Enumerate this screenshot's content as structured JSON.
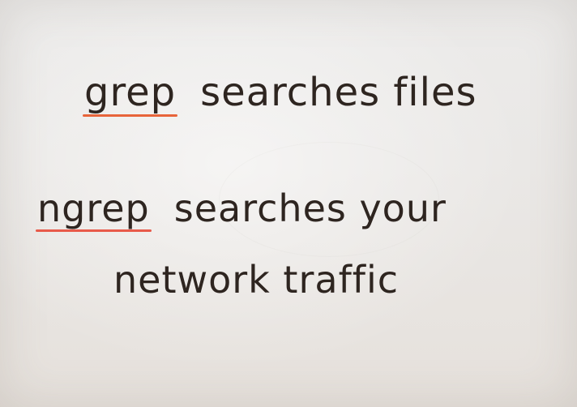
{
  "note": {
    "line1": {
      "keyword": "grep",
      "rest": "searches files"
    },
    "line2": {
      "keyword": "ngrep",
      "rest": "searches your"
    },
    "line3": {
      "text": "network traffic"
    }
  },
  "colors": {
    "ink": "#2e2520",
    "underline_grep": "#e8643a",
    "underline_ngrep": "#e85a4a",
    "paper": "#eae8e6"
  }
}
